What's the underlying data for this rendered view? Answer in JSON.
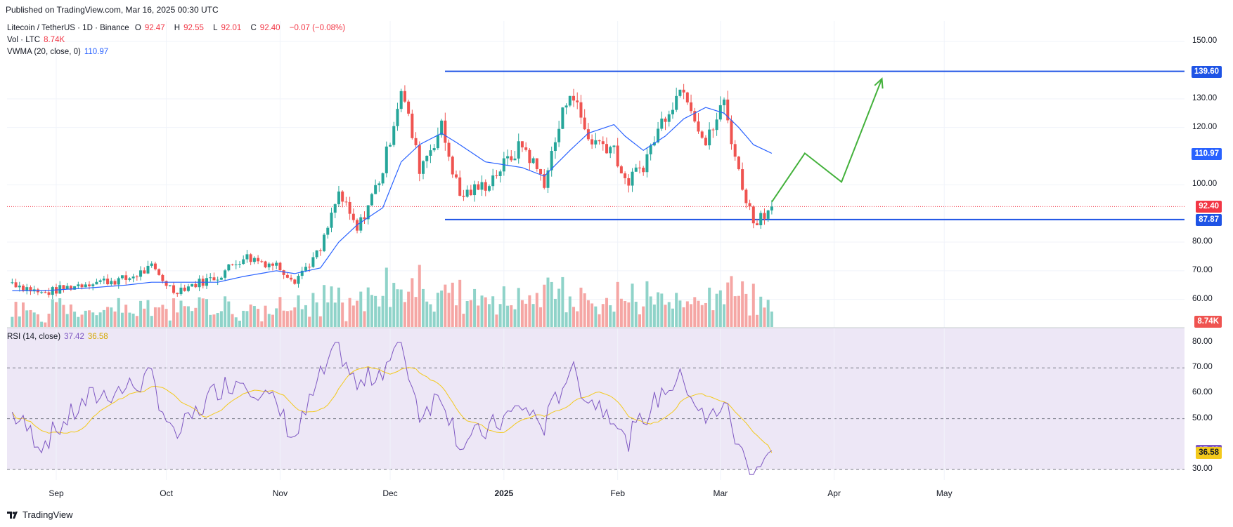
{
  "published": "Published on TradingView.com, Mar 16, 2025 00:30 UTC",
  "legend": {
    "symbol": "Litecoin / TetherUS · 1D · Binance",
    "o_label": "O",
    "o": "92.47",
    "h_label": "H",
    "h": "92.55",
    "l_label": "L",
    "l": "92.01",
    "c_label": "C",
    "c": "92.40",
    "change": "−0.07 (−0.08%)",
    "vol_label": "Vol · LTC",
    "vol": "8.74K",
    "vwma_label": "VWMA (20, close, 0)",
    "vwma": "110.97",
    "rsi_label": "RSI (14, close)",
    "rsi": "37.42",
    "rsi_ma": "36.58"
  },
  "brand": "TradingView",
  "colors": {
    "up": "#26a69a",
    "down": "#ef5350",
    "vol_up": "#8fd3c9",
    "vol_down": "#f5a6a4",
    "vwma": "#2962ff",
    "level": "#1e53e5",
    "projection": "#43b13b",
    "rsi": "#7e57c2",
    "rsi_ma": "#f3c91c",
    "rsi_band": "#ede7f6",
    "price_tag": "#f23645"
  },
  "icons": [
    "tradingview-logo-icon"
  ],
  "chart_data": {
    "type": "candlestick",
    "x_labels": [
      "Sep",
      "Oct",
      "Nov",
      "Dec",
      "2025",
      "Feb",
      "Mar",
      "Apr",
      "May"
    ],
    "price_axis": [
      "150.00",
      "130.00",
      "120.00",
      "100.00",
      "80.00",
      "70.00",
      "60.00"
    ],
    "rsi_axis": [
      "80.00",
      "70.00",
      "60.00",
      "50.00",
      "30.00"
    ],
    "ylim": [
      55,
      153
    ],
    "rsi_ylim": [
      27,
      83
    ],
    "rsi_bands": [
      30,
      50,
      70
    ],
    "levels": [
      {
        "label": "139.60",
        "value": 139.6
      },
      {
        "label": "87.87",
        "value": 87.87
      }
    ],
    "tags": {
      "vwma": {
        "label": "110.97",
        "value": 110.97
      },
      "last": {
        "label": "92.40",
        "value": 92.4
      },
      "volume": "8.74K",
      "rsi": {
        "label": "37.42",
        "value": 37.42
      },
      "rsi_ma": {
        "label": "36.58",
        "value": 36.58
      }
    },
    "anchors": [
      {
        "date": "2024-08-20",
        "close": 66,
        "vwma": 63,
        "rsi": 52
      },
      {
        "date": "2024-08-28",
        "close": 62,
        "vwma": 63,
        "rsi": 40
      },
      {
        "date": "2024-09-10",
        "close": 66,
        "vwma": 64,
        "rsi": 58
      },
      {
        "date": "2024-09-20",
        "close": 67,
        "vwma": 65,
        "rsi": 62
      },
      {
        "date": "2024-09-27",
        "close": 71,
        "vwma": 66,
        "rsi": 66
      },
      {
        "date": "2024-10-03",
        "close": 63,
        "vwma": 66,
        "rsi": 42
      },
      {
        "date": "2024-10-15",
        "close": 68,
        "vwma": 66,
        "rsi": 62
      },
      {
        "date": "2024-10-22",
        "close": 75,
        "vwma": 68,
        "rsi": 66
      },
      {
        "date": "2024-10-31",
        "close": 72,
        "vwma": 70,
        "rsi": 55
      },
      {
        "date": "2024-11-05",
        "close": 67,
        "vwma": 69,
        "rsi": 42
      },
      {
        "date": "2024-11-12",
        "close": 77,
        "vwma": 71,
        "rsi": 66
      },
      {
        "date": "2024-11-17",
        "close": 97,
        "vwma": 80,
        "rsi": 78
      },
      {
        "date": "2024-11-22",
        "close": 84,
        "vwma": 86,
        "rsi": 62
      },
      {
        "date": "2024-11-29",
        "close": 105,
        "vwma": 92,
        "rsi": 70
      },
      {
        "date": "2024-12-04",
        "close": 134,
        "vwma": 108,
        "rsi": 80
      },
      {
        "date": "2024-12-09",
        "close": 106,
        "vwma": 114,
        "rsi": 52
      },
      {
        "date": "2024-12-15",
        "close": 120,
        "vwma": 118,
        "rsi": 60
      },
      {
        "date": "2024-12-20",
        "close": 96,
        "vwma": 114,
        "rsi": 40
      },
      {
        "date": "2024-12-27",
        "close": 100,
        "vwma": 108,
        "rsi": 45
      },
      {
        "date": "2025-01-06",
        "close": 114,
        "vwma": 106,
        "rsi": 55
      },
      {
        "date": "2025-01-12",
        "close": 101,
        "vwma": 103,
        "rsi": 47
      },
      {
        "date": "2025-01-19",
        "close": 134,
        "vwma": 112,
        "rsi": 70
      },
      {
        "date": "2025-01-24",
        "close": 116,
        "vwma": 118,
        "rsi": 58
      },
      {
        "date": "2025-01-31",
        "close": 113,
        "vwma": 121,
        "rsi": 52
      },
      {
        "date": "2025-02-03",
        "close": 100,
        "vwma": 117,
        "rsi": 40
      },
      {
        "date": "2025-02-08",
        "close": 107,
        "vwma": 112,
        "rsi": 50
      },
      {
        "date": "2025-02-14",
        "close": 125,
        "vwma": 117,
        "rsi": 62
      },
      {
        "date": "2025-02-19",
        "close": 135,
        "vwma": 123,
        "rsi": 66
      },
      {
        "date": "2025-02-25",
        "close": 114,
        "vwma": 127,
        "rsi": 48
      },
      {
        "date": "2025-03-02",
        "close": 129,
        "vwma": 125,
        "rsi": 57
      },
      {
        "date": "2025-03-06",
        "close": 104,
        "vwma": 120,
        "rsi": 38
      },
      {
        "date": "2025-03-10",
        "close": 87,
        "vwma": 114,
        "rsi": 30
      },
      {
        "date": "2025-03-15",
        "close": 92.4,
        "vwma": 110.97,
        "rsi": 37.42
      }
    ],
    "projection": [
      {
        "date": "2025-03-15",
        "price": 94
      },
      {
        "date": "2025-03-24",
        "price": 111
      },
      {
        "date": "2025-04-03",
        "price": 101
      },
      {
        "date": "2025-04-14",
        "price": 137
      }
    ]
  }
}
